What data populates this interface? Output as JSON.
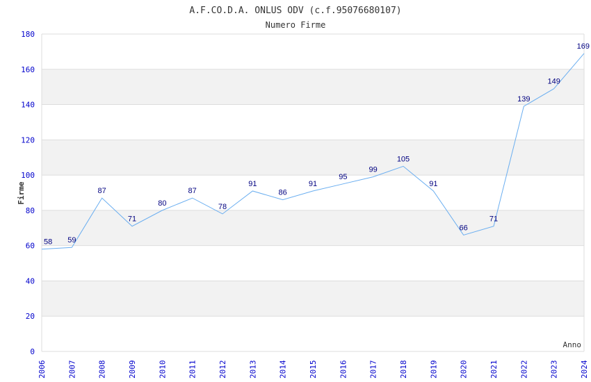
{
  "chart_data": {
    "type": "line",
    "title": "A.F.CO.D.A. ONLUS ODV (c.f.95076680107)",
    "subtitle": "Numero Firme",
    "xlabel": "Anno",
    "ylabel": "Firme",
    "ylim": [
      0,
      180
    ],
    "yticks": [
      "0",
      "20",
      "40",
      "60",
      "80",
      "100",
      "120",
      "140",
      "160",
      "180"
    ],
    "x": [
      "2006",
      "2007",
      "2008",
      "2009",
      "2010",
      "2011",
      "2012",
      "2013",
      "2014",
      "2015",
      "2016",
      "2017",
      "2018",
      "2019",
      "2020",
      "2021",
      "2022",
      "2023",
      "2024"
    ],
    "values": [
      58,
      59,
      87,
      71,
      80,
      87,
      78,
      91,
      86,
      91,
      95,
      99,
      105,
      91,
      66,
      71,
      139,
      149,
      169
    ],
    "grid": true,
    "colors": {
      "line": "#6aaef0",
      "tick": "#0000cc",
      "label": "#000080",
      "band": "#f2f2f2"
    }
  }
}
